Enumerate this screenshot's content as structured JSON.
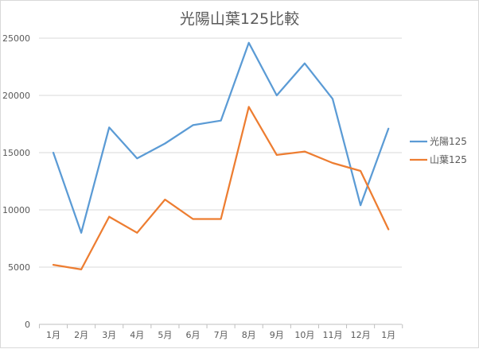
{
  "chart_data": {
    "type": "line",
    "title": "光陽山葉125比較",
    "categories": [
      "1月",
      "2月",
      "3月",
      "4月",
      "5月",
      "6月",
      "7月",
      "8月",
      "9月",
      "10月",
      "11月",
      "12月",
      "1月"
    ],
    "y_ticks": [
      "0",
      "5000",
      "10000",
      "15000",
      "20000",
      "25000"
    ],
    "ylim": [
      0,
      25000
    ],
    "grid": "horizontal",
    "legend": "right",
    "series": [
      {
        "name": "光陽125",
        "color": "#5b9bd5",
        "values": [
          15000,
          8000,
          17200,
          14500,
          15800,
          17400,
          17800,
          24600,
          20000,
          22800,
          19700,
          10400,
          17100
        ]
      },
      {
        "name": "山葉125",
        "color": "#ed7d31",
        "values": [
          5200,
          4800,
          9400,
          8000,
          10900,
          9200,
          9200,
          19000,
          14800,
          15100,
          14100,
          13400,
          8300
        ]
      }
    ]
  }
}
